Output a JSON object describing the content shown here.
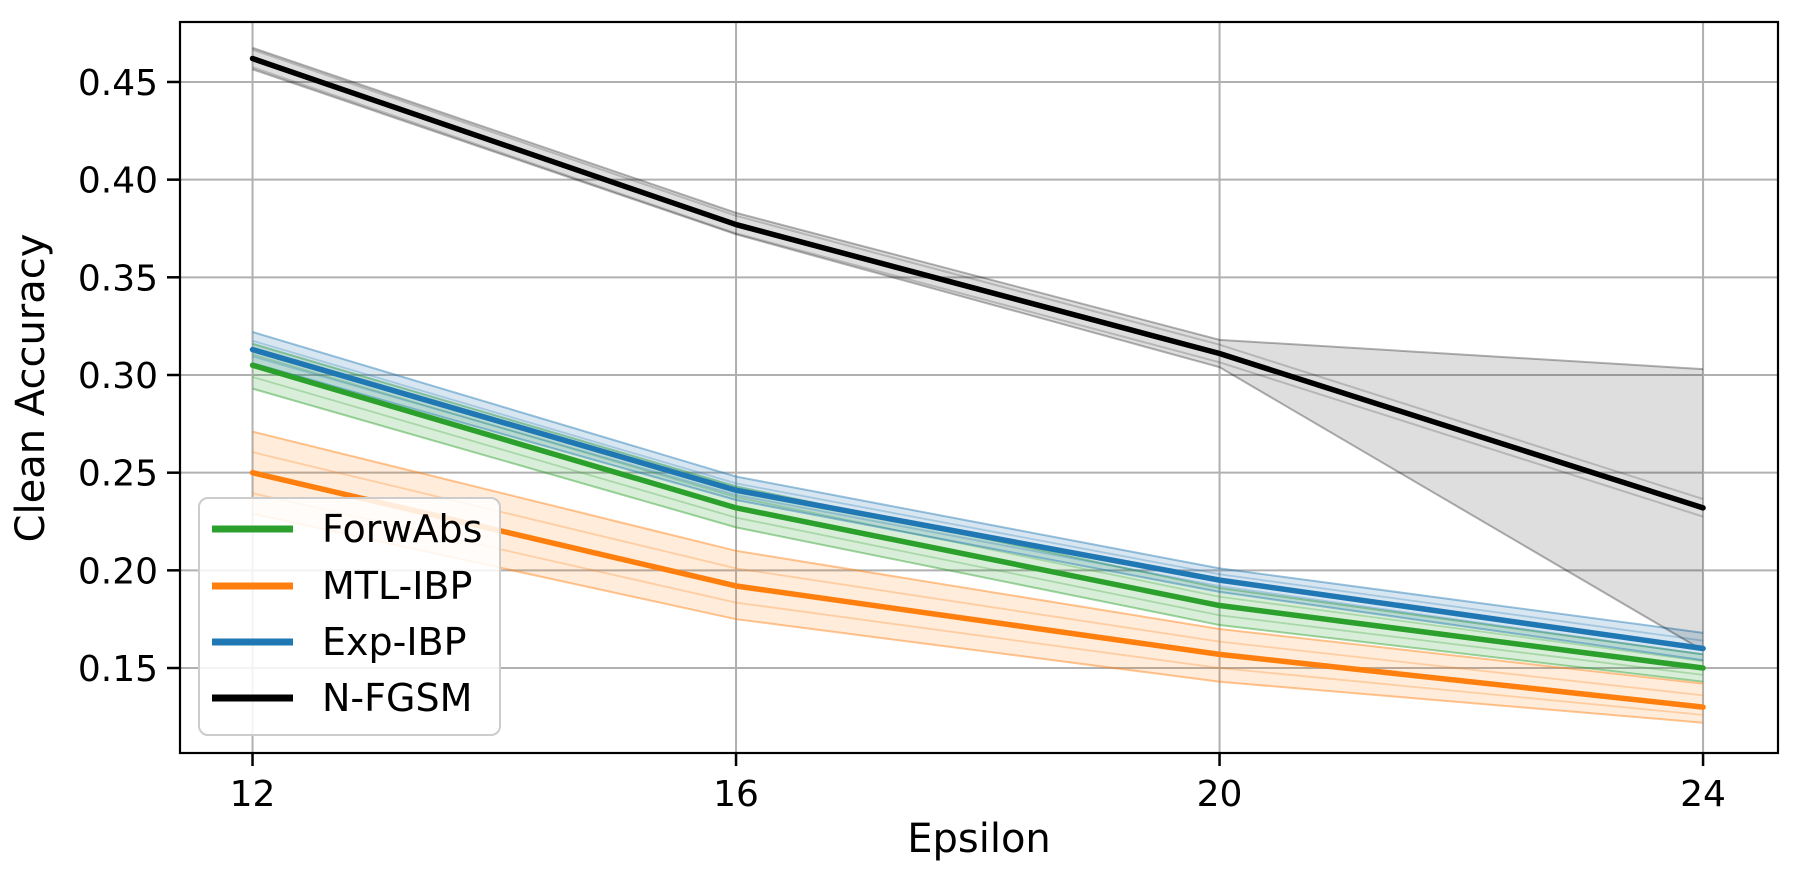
{
  "figure": {
    "background": "#ffffff",
    "spine_color": "#000000"
  },
  "chart_data": {
    "type": "line",
    "title": "",
    "xlabel": "Epsilon",
    "ylabel": "Clean Accuracy",
    "x": [
      12,
      16,
      20,
      24
    ],
    "x_tick_labels": [
      "12",
      "16",
      "20",
      "24"
    ],
    "y_ticks": [
      0.15,
      0.2,
      0.25,
      0.3,
      0.35,
      0.4,
      0.45
    ],
    "y_tick_labels": [
      "0.15",
      "0.20",
      "0.25",
      "0.30",
      "0.35",
      "0.40",
      "0.45"
    ],
    "xlim": [
      11.4,
      24.62
    ],
    "ylim": [
      0.1065,
      0.4807
    ],
    "grid": true,
    "grid_color": "#b0b0b0",
    "legend_position": "lower-left",
    "series": [
      {
        "name": "ForwAbs",
        "color": "#2ca02c",
        "band_opacity": 0.18,
        "values": [
          0.305,
          0.232,
          0.182,
          0.15
        ],
        "band_low": [
          0.293,
          0.222,
          0.172,
          0.143
        ],
        "band_high": [
          0.316,
          0.243,
          0.191,
          0.157
        ]
      },
      {
        "name": "MTL-IBP",
        "color": "#ff7f0e",
        "band_opacity": 0.15,
        "values": [
          0.25,
          0.192,
          0.157,
          0.13
        ],
        "band_low": [
          0.229,
          0.175,
          0.143,
          0.122
        ],
        "band_high": [
          0.271,
          0.21,
          0.17,
          0.142
        ]
      },
      {
        "name": "Exp-IBP",
        "color": "#1f77b4",
        "band_opacity": 0.18,
        "values": [
          0.313,
          0.241,
          0.195,
          0.16
        ],
        "band_low": [
          0.306,
          0.236,
          0.189,
          0.154
        ],
        "band_high": [
          0.322,
          0.248,
          0.201,
          0.168
        ]
      },
      {
        "name": "N-FGSM",
        "color": "#000000",
        "band_opacity": 0.13,
        "values": [
          0.462,
          0.377,
          0.311,
          0.232
        ],
        "band_low": [
          0.4565,
          0.372,
          0.304,
          0.159
        ],
        "band_high": [
          0.4675,
          0.383,
          0.318,
          0.303
        ]
      }
    ]
  }
}
